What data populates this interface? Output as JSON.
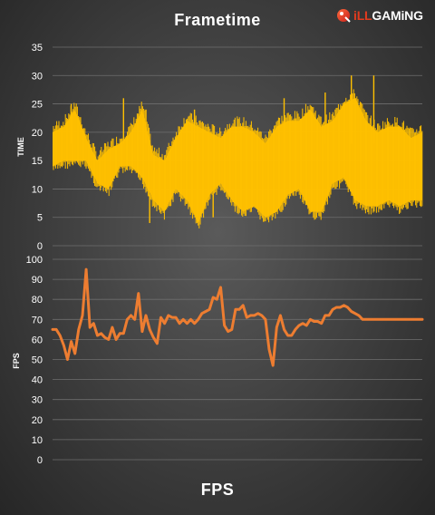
{
  "logo": {
    "prefix": "iLL",
    "suffix": "GAMiNG",
    "accent_color": "#e23b1e"
  },
  "chart_data": [
    {
      "type": "area",
      "title": "Frametime",
      "xlabel": "",
      "ylabel": "TIME",
      "ylim": [
        0,
        35
      ],
      "yticks": [
        0,
        5,
        10,
        15,
        20,
        25,
        30,
        35
      ],
      "grid": true,
      "color": "#ffc000",
      "series": [
        {
          "band_x": [
            0,
            3,
            6,
            9,
            12,
            15,
            18,
            21,
            24,
            27,
            30,
            33,
            36,
            39,
            42,
            45,
            48,
            51,
            54,
            57,
            60,
            63,
            66,
            69,
            72,
            75,
            78,
            81,
            84,
            87,
            90,
            93,
            96,
            99
          ],
          "lower": [
            14,
            15,
            15,
            15,
            11,
            10,
            14,
            14,
            12,
            8,
            6,
            10,
            8,
            4,
            9,
            11,
            8,
            6,
            7,
            5,
            6,
            9,
            10,
            6,
            6,
            11,
            12,
            8,
            7,
            7,
            8,
            7,
            8,
            8
          ],
          "upper": [
            20,
            21,
            24,
            19,
            15,
            17,
            18,
            20,
            24,
            16,
            15,
            19,
            22,
            21,
            20,
            19,
            21,
            21,
            20,
            18,
            21,
            22,
            22,
            24,
            21,
            22,
            25,
            26,
            22,
            20,
            21,
            21,
            19,
            20
          ],
          "spikes": [
            {
              "x": 5,
              "y": 25
            },
            {
              "x": 19,
              "y": 26
            },
            {
              "x": 25,
              "y": 24
            },
            {
              "x": 38,
              "y": 24
            },
            {
              "x": 62,
              "y": 26
            },
            {
              "x": 73,
              "y": 27
            },
            {
              "x": 80,
              "y": 30
            },
            {
              "x": 86,
              "y": 30
            },
            {
              "x": 43,
              "y": 5
            },
            {
              "x": 26,
              "y": 4
            }
          ]
        }
      ]
    },
    {
      "type": "line",
      "title": "FPS",
      "xlabel": "",
      "ylabel": "FPS",
      "ylim": [
        0,
        100
      ],
      "yticks": [
        0,
        10,
        20,
        30,
        40,
        50,
        60,
        70,
        80,
        90,
        100
      ],
      "grid": true,
      "color": "#ed7d31",
      "series": [
        {
          "x": [
            0,
            1,
            2,
            3,
            4,
            5,
            6,
            7,
            8,
            9,
            10,
            11,
            12,
            13,
            14,
            15,
            16,
            17,
            18,
            19,
            20,
            21,
            22,
            23,
            24,
            25,
            26,
            27,
            28,
            29,
            30,
            31,
            32,
            33,
            34,
            35,
            36,
            37,
            38,
            39,
            40,
            41,
            42,
            43,
            44,
            45,
            46,
            47,
            48,
            49,
            50,
            51,
            52,
            53,
            54,
            55,
            56,
            57,
            58,
            59,
            60,
            61,
            62,
            63,
            64,
            65,
            66,
            67,
            68,
            69,
            70,
            71,
            72,
            73,
            74,
            75,
            76,
            77,
            78,
            79,
            80,
            81,
            82,
            83,
            84,
            85,
            86,
            87,
            88,
            89,
            90,
            91,
            92,
            93,
            94,
            95,
            96,
            97,
            98,
            99
          ],
          "values": [
            65,
            65,
            62,
            57,
            50,
            59,
            53,
            65,
            72,
            95,
            66,
            68,
            62,
            63,
            61,
            60,
            66,
            60,
            63,
            63,
            70,
            72,
            70,
            83,
            64,
            72,
            65,
            61,
            58,
            71,
            68,
            72,
            71,
            71,
            68,
            70,
            68,
            70,
            68,
            70,
            73,
            74,
            75,
            81,
            80,
            86,
            67,
            64,
            65,
            75,
            75,
            77,
            71,
            72,
            72,
            73,
            72,
            70,
            55,
            47,
            66,
            72,
            65,
            62,
            62,
            65,
            67,
            68,
            67,
            70,
            69,
            69,
            68,
            72,
            72,
            75,
            76,
            76,
            77,
            76,
            74,
            73,
            72,
            70,
            70,
            70,
            70,
            70,
            70,
            70,
            70,
            70,
            70,
            70,
            70,
            70,
            70,
            70,
            70,
            70
          ]
        }
      ]
    }
  ]
}
